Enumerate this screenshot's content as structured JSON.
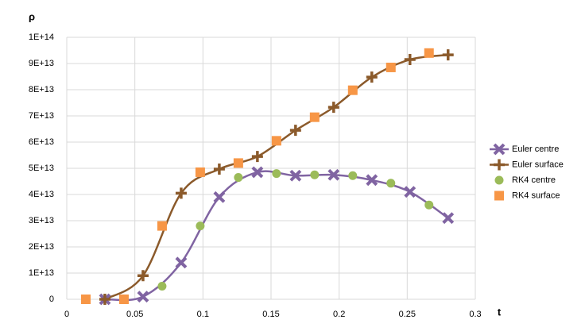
{
  "chart_data": {
    "type": "scatter",
    "smooth": true,
    "grid": true,
    "y_label": "ρ",
    "x_label": "t",
    "xlim": [
      0,
      0.3
    ],
    "xticks": [
      0,
      0.05,
      0.1,
      0.15,
      0.2,
      0.25,
      0.3
    ],
    "ylim": [
      0,
      100000000000000.0
    ],
    "yticks": [
      {
        "value": 0,
        "label": "0"
      },
      {
        "value": 10000000000000.0,
        "label": "1E+13"
      },
      {
        "value": 20000000000000.0,
        "label": "2E+13"
      },
      {
        "value": 30000000000000.0,
        "label": "3E+13"
      },
      {
        "value": 40000000000000.0,
        "label": "4E+13"
      },
      {
        "value": 50000000000000.0,
        "label": "5E+13"
      },
      {
        "value": 60000000000000.0,
        "label": "6E+13"
      },
      {
        "value": 70000000000000.0,
        "label": "7E+13"
      },
      {
        "value": 80000000000000.0,
        "label": "8E+13"
      },
      {
        "value": 90000000000000.0,
        "label": "9E+13"
      },
      {
        "value": 100000000000000.0,
        "label": "1E+14"
      }
    ],
    "legend": "right",
    "series": [
      {
        "name": "Euler centre",
        "color": "#8064a2",
        "marker": "x",
        "line": true,
        "x": [
          0.028,
          0.056,
          0.084,
          0.112,
          0.14,
          0.168,
          0.196,
          0.224,
          0.252,
          0.28
        ],
        "values": [
          0,
          1000000000000.0,
          14000000000000.0,
          39000000000000.0,
          48500000000000.0,
          47200000000000.0,
          47500000000000.0,
          45500000000000.0,
          41000000000000.0,
          31000000000000.0
        ]
      },
      {
        "name": "Euler surface",
        "color": "#8b5a2b",
        "marker": "plus",
        "line": true,
        "x": [
          0.028,
          0.056,
          0.084,
          0.112,
          0.14,
          0.168,
          0.196,
          0.224,
          0.252,
          0.28
        ],
        "values": [
          0,
          9000000000000.0,
          40500000000000.0,
          49700000000000.0,
          54500000000000.0,
          64500000000000.0,
          73300000000000.0,
          84800000000000.0,
          91500000000000.0,
          93300000000000.0
        ]
      },
      {
        "name": "RK4 centre",
        "color": "#9bbb59",
        "marker": "circle",
        "line": false,
        "x": [
          0.07,
          0.098,
          0.126,
          0.154,
          0.182,
          0.21,
          0.238,
          0.266
        ],
        "values": [
          5000000000000.0,
          28000000000000.0,
          46500000000000.0,
          48000000000000.0,
          47500000000000.0,
          47200000000000.0,
          44300000000000.0,
          36000000000000.0
        ]
      },
      {
        "name": "RK4 surface",
        "color": "#f79646",
        "marker": "square",
        "line": false,
        "x": [
          0.014,
          0.042,
          0.07,
          0.098,
          0.126,
          0.154,
          0.182,
          0.21,
          0.238,
          0.266
        ],
        "values": [
          0,
          0,
          28000000000000.0,
          48500000000000.0,
          52000000000000.0,
          60500000000000.0,
          69500000000000.0,
          79800000000000.0,
          88500000000000.0,
          94000000000000.0
        ]
      }
    ]
  }
}
